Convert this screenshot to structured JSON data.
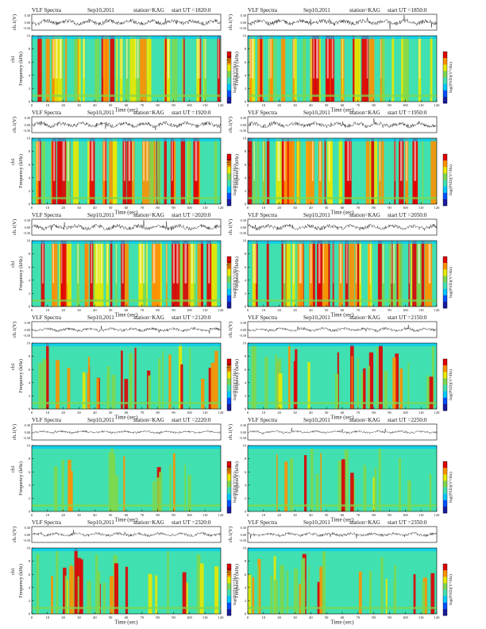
{
  "chart_data": [
    {
      "type": "heatmap",
      "header": {
        "product": "VLF Spectra",
        "date": "Sep10,2011",
        "station": "station=KAG",
        "start": "start UT =1820:0"
      },
      "trace_label": "ch.1(V)",
      "trace_ticks": [
        "0.30",
        "0.00",
        "-0.30"
      ],
      "ylabel": "Frequency (kHz)",
      "channel_label": "ch1",
      "colorbar_label": "log(PSD)(V²/Hz)",
      "xlabel": "Time (sec)",
      "xlim": [
        0,
        120
      ],
      "ylim": [
        0,
        10
      ],
      "xticks": [
        0,
        10,
        20,
        30,
        40,
        50,
        60,
        70,
        80,
        90,
        100,
        110,
        120
      ],
      "yticks": [
        0,
        2,
        4,
        6,
        8,
        10
      ],
      "activity": "high"
    },
    {
      "type": "heatmap",
      "header": {
        "product": "VLF Spectra",
        "date": "Sep10,2011",
        "station": "station=KAG",
        "start": "start UT =1850:0"
      },
      "trace_label": "ch.1(V)",
      "trace_ticks": [
        "0.30",
        "0.00",
        "-0.30"
      ],
      "ylabel": "Frequency (kHz)",
      "channel_label": "ch1",
      "colorbar_label": "log(PSD)(V²/Hz)",
      "xlabel": "Time (sec)",
      "xlim": [
        0,
        120
      ],
      "ylim": [
        0,
        10
      ],
      "xticks": [
        0,
        10,
        20,
        30,
        40,
        50,
        60,
        70,
        80,
        90,
        100,
        110,
        120
      ],
      "yticks": [
        0,
        2,
        4,
        6,
        8,
        10
      ],
      "activity": "high"
    },
    {
      "type": "heatmap",
      "header": {
        "product": "VLF Spectra",
        "date": "Sep10,2011",
        "station": "station=KAG",
        "start": "start UT =1920:0"
      },
      "trace_label": "ch.1(V)",
      "trace_ticks": [
        "0.30",
        "0.00",
        "-0.30"
      ],
      "ylabel": "Frequency (kHz)",
      "channel_label": "ch1",
      "colorbar_label": "log(PSD)(V²/Hz)",
      "xlabel": "Time (sec)",
      "xlim": [
        0,
        120
      ],
      "ylim": [
        0,
        10
      ],
      "xticks": [
        0,
        10,
        20,
        30,
        40,
        50,
        60,
        70,
        80,
        90,
        100,
        110,
        120
      ],
      "yticks": [
        0,
        2,
        4,
        6,
        8,
        10
      ],
      "activity": "high"
    },
    {
      "type": "heatmap",
      "header": {
        "product": "VLF Spectra",
        "date": "Sep10,2011",
        "station": "station=KAG",
        "start": "start UT =1950:0"
      },
      "trace_label": "ch.1(V)",
      "trace_ticks": [
        "0.30",
        "0.00",
        "-0.30"
      ],
      "ylabel": "Frequency (kHz)",
      "channel_label": "ch1",
      "colorbar_label": "log(PSD)(V²/Hz)",
      "xlabel": "Time (sec)",
      "xlim": [
        0,
        120
      ],
      "ylim": [
        0,
        10
      ],
      "xticks": [
        0,
        10,
        20,
        30,
        40,
        50,
        60,
        70,
        80,
        90,
        100,
        110,
        120
      ],
      "yticks": [
        0,
        2,
        4,
        6,
        8,
        10
      ],
      "activity": "high"
    },
    {
      "type": "heatmap",
      "header": {
        "product": "VLF Spectra",
        "date": "Sep10,2011",
        "station": "station=KAG",
        "start": "start UT =2020:0"
      },
      "trace_label": "ch.1(V)",
      "trace_ticks": [
        "0.30",
        "0.00",
        "-0.30"
      ],
      "ylabel": "Frequency (kHz)",
      "channel_label": "ch1",
      "colorbar_label": "log(PSD)(V²/Hz)",
      "xlabel": "Time (sec)",
      "xlim": [
        0,
        120
      ],
      "ylim": [
        0,
        10
      ],
      "xticks": [
        0,
        10,
        20,
        30,
        40,
        50,
        60,
        70,
        80,
        90,
        100,
        110,
        120
      ],
      "yticks": [
        0,
        2,
        4,
        6,
        8,
        10
      ],
      "activity": "high"
    },
    {
      "type": "heatmap",
      "header": {
        "product": "VLF Spectra",
        "date": "Sep10,2011",
        "station": "station=KAG",
        "start": "start UT =2050:0"
      },
      "trace_label": "ch.1(V)",
      "trace_ticks": [
        "0.30",
        "0.00",
        "-0.30"
      ],
      "ylabel": "Frequency (kHz)",
      "channel_label": "ch1",
      "colorbar_label": "log(PSD)(V²/Hz)",
      "xlabel": "Time (sec)",
      "xlim": [
        0,
        120
      ],
      "ylim": [
        0,
        10
      ],
      "xticks": [
        0,
        10,
        20,
        30,
        40,
        50,
        60,
        70,
        80,
        90,
        100,
        110,
        120
      ],
      "yticks": [
        0,
        2,
        4,
        6,
        8,
        10
      ],
      "activity": "high"
    },
    {
      "type": "heatmap",
      "header": {
        "product": "VLF Spectra",
        "date": "Sep10,2011",
        "station": "station=KAG",
        "start": "start UT =2120:0"
      },
      "trace_label": "ch.1(V)",
      "trace_ticks": [
        "0.30",
        "0.00",
        "-0.30"
      ],
      "ylabel": "Frequency (kHz)",
      "channel_label": "ch1",
      "colorbar_label": "log(PSD)(V²/Hz)",
      "xlabel": "Time (sec)",
      "xlim": [
        0,
        120
      ],
      "ylim": [
        0,
        10
      ],
      "xticks": [
        0,
        10,
        20,
        30,
        40,
        50,
        60,
        70,
        80,
        90,
        100,
        110,
        120
      ],
      "yticks": [
        0,
        2,
        4,
        6,
        8,
        10
      ],
      "activity": "medium"
    },
    {
      "type": "heatmap",
      "header": {
        "product": "VLF Spectra",
        "date": "Sep10,2011",
        "station": "station=KAG",
        "start": "start UT =2150:0"
      },
      "trace_label": "ch.1(V)",
      "trace_ticks": [
        "0.30",
        "0.00",
        "-0.30"
      ],
      "ylabel": "Frequency (kHz)",
      "channel_label": "ch1",
      "colorbar_label": "log(PSD)(V²/Hz)",
      "xlabel": "Time (sec)",
      "xlim": [
        0,
        120
      ],
      "ylim": [
        0,
        10
      ],
      "xticks": [
        0,
        10,
        20,
        30,
        40,
        50,
        60,
        70,
        80,
        90,
        100,
        110,
        120
      ],
      "yticks": [
        0,
        2,
        4,
        6,
        8,
        10
      ],
      "activity": "medium"
    },
    {
      "type": "heatmap",
      "header": {
        "product": "VLF Spectra",
        "date": "Sep10,2011",
        "station": "station=KAG",
        "start": "start UT =2220:0"
      },
      "trace_label": "ch.1(V)",
      "trace_ticks": [
        "0.30",
        "0.00",
        "-0.30"
      ],
      "ylabel": "Frequency (kHz)",
      "channel_label": "ch1",
      "colorbar_label": "log(PSD)(V²/Hz)",
      "xlabel": "Time (sec)",
      "xlim": [
        0,
        120
      ],
      "ylim": [
        0,
        10
      ],
      "xticks": [
        0,
        10,
        20,
        30,
        40,
        50,
        60,
        70,
        80,
        90,
        100,
        110,
        120
      ],
      "yticks": [
        0,
        2,
        4,
        6,
        8,
        10
      ],
      "activity": "low"
    },
    {
      "type": "heatmap",
      "header": {
        "product": "VLF Spectra",
        "date": "Sep10,2011",
        "station": "station=KAG",
        "start": "start UT =2250:0"
      },
      "trace_label": "ch.1(V)",
      "trace_ticks": [
        "0.30",
        "0.00",
        "-0.30"
      ],
      "ylabel": "Frequency (kHz)",
      "channel_label": "ch1",
      "colorbar_label": "log(PSD)(V²/Hz)",
      "xlabel": "Time (sec)",
      "xlim": [
        0,
        120
      ],
      "ylim": [
        0,
        10
      ],
      "xticks": [
        0,
        10,
        20,
        30,
        40,
        50,
        60,
        70,
        80,
        90,
        100,
        110,
        120
      ],
      "yticks": [
        0,
        2,
        4,
        6,
        8,
        10
      ],
      "activity": "low"
    },
    {
      "type": "heatmap",
      "header": {
        "product": "VLF Spectra",
        "date": "Sep10,2011",
        "station": "station=KAG",
        "start": "start UT =2320:0"
      },
      "trace_label": "ch.1(V)",
      "trace_ticks": [
        "0.30",
        "0.00",
        "-0.30"
      ],
      "ylabel": "Frequency (kHz)",
      "channel_label": "ch1",
      "colorbar_label": "log(PSD)(V²/Hz)",
      "xlabel": "Time (sec)",
      "xlim": [
        0,
        120
      ],
      "ylim": [
        0,
        10
      ],
      "xticks": [
        0,
        10,
        20,
        30,
        40,
        50,
        60,
        70,
        80,
        90,
        100,
        110,
        120
      ],
      "yticks": [
        0,
        2,
        4,
        6,
        8,
        10
      ],
      "activity": "medium"
    },
    {
      "type": "heatmap",
      "header": {
        "product": "VLF Spectra",
        "date": "Sep10,2011",
        "station": "station=KAG",
        "start": "start UT =2350:0"
      },
      "trace_label": "ch.1(V)",
      "trace_ticks": [
        "0.30",
        "0.00",
        "-0.30"
      ],
      "ylabel": "Frequency (kHz)",
      "channel_label": "ch1",
      "colorbar_label": "log(PSD)(V²/Hz)",
      "xlabel": "Time (sec)",
      "xlim": [
        0,
        120
      ],
      "ylim": [
        0,
        10
      ],
      "xticks": [
        0,
        10,
        20,
        30,
        40,
        50,
        60,
        70,
        80,
        90,
        100,
        110,
        120
      ],
      "yticks": [
        0,
        2,
        4,
        6,
        8,
        10
      ],
      "activity": "medium"
    }
  ],
  "colors": {
    "palette": [
      "#1a1aa0",
      "#0050ff",
      "#00c8ff",
      "#40e0b0",
      "#7cd850",
      "#e8e800",
      "#ff9000",
      "#e00000",
      "#ffffff"
    ],
    "trace": "#222222",
    "axis": "#000000"
  }
}
